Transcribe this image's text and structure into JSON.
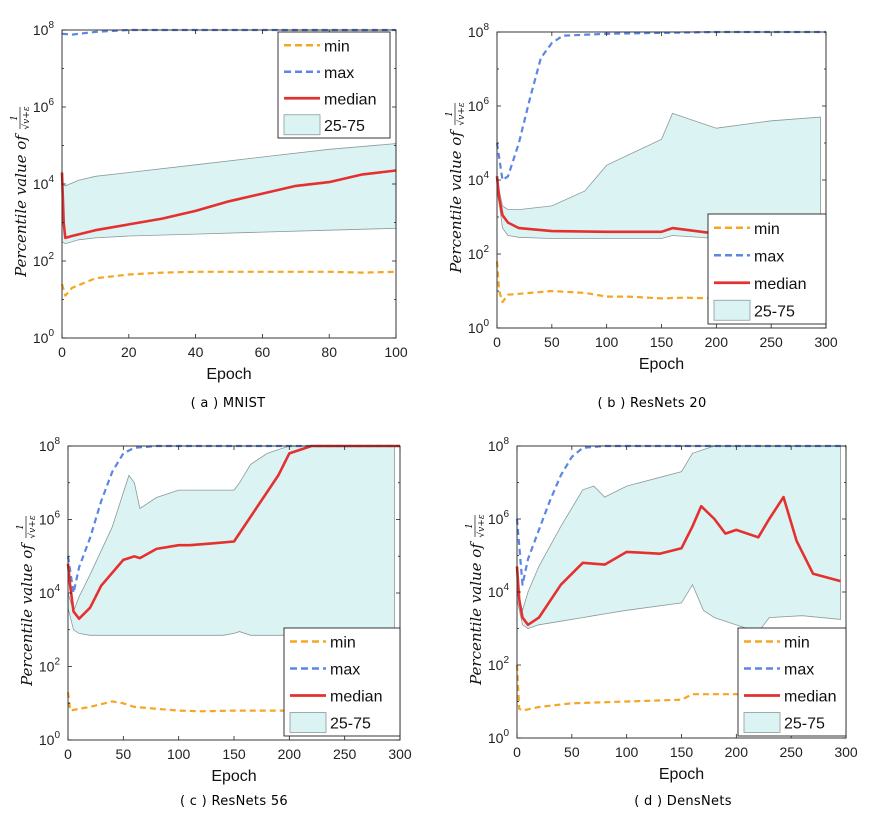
{
  "chart_data": [
    {
      "id": "a",
      "type": "line",
      "caption": "( a ) MNIST",
      "xlabel": "Epoch",
      "ylabel": "Percentile value of",
      "ylabel_frac_num": "1",
      "ylabel_frac_den": "√v+ε",
      "xlim": [
        0,
        100
      ],
      "ylim_log10": [
        0,
        8
      ],
      "xticks": [
        0,
        20,
        40,
        60,
        80,
        100
      ],
      "yticks_exp": [
        0,
        2,
        4,
        6,
        8
      ],
      "legend": {
        "position": "top-right",
        "entries": [
          "min",
          "max",
          "median",
          "25-75"
        ]
      },
      "series": [
        {
          "name": "min",
          "color": "#f5a623",
          "style": "dashed",
          "x": [
            0,
            1,
            3,
            10,
            20,
            30,
            40,
            50,
            60,
            70,
            80,
            90,
            100
          ],
          "log10y": [
            1.4,
            1.1,
            1.3,
            1.55,
            1.65,
            1.7,
            1.72,
            1.72,
            1.72,
            1.72,
            1.72,
            1.7,
            1.72
          ]
        },
        {
          "name": "max",
          "color": "#5b86e5",
          "style": "dashed",
          "x": [
            0,
            3,
            10,
            20,
            40,
            60,
            80,
            100
          ],
          "log10y": [
            7.9,
            7.88,
            7.95,
            8.0,
            8.0,
            8.0,
            8.0,
            8.0
          ]
        },
        {
          "name": "median",
          "color": "#e53030",
          "style": "solid",
          "x": [
            0,
            0.5,
            1,
            3,
            10,
            20,
            30,
            40,
            50,
            60,
            70,
            80,
            90,
            100
          ],
          "log10y": [
            4.3,
            3.0,
            2.6,
            2.65,
            2.8,
            2.95,
            3.1,
            3.3,
            3.55,
            3.75,
            3.95,
            4.05,
            4.25,
            4.35
          ]
        },
        {
          "name": "25-75",
          "color": "#dcf3f3",
          "style": "band",
          "x": [
            0,
            1,
            5,
            10,
            20,
            40,
            60,
            80,
            100
          ],
          "low_log10": [
            2.5,
            2.45,
            2.55,
            2.6,
            2.65,
            2.7,
            2.75,
            2.8,
            2.85
          ],
          "high_log10": [
            4.0,
            3.95,
            4.1,
            4.2,
            4.3,
            4.5,
            4.7,
            4.9,
            5.05
          ]
        }
      ]
    },
    {
      "id": "b",
      "type": "line",
      "caption": "( b ) ResNets 20",
      "xlabel": "Epoch",
      "ylabel": "Percentile value of",
      "ylabel_frac_num": "1",
      "ylabel_frac_den": "√v+ε",
      "xlim": [
        0,
        300
      ],
      "ylim_log10": [
        0,
        8
      ],
      "xticks": [
        0,
        50,
        100,
        150,
        200,
        250,
        300
      ],
      "yticks_exp": [
        0,
        2,
        4,
        6,
        8
      ],
      "legend": {
        "position": "bottom-right",
        "entries": [
          "min",
          "max",
          "median",
          "25-75"
        ]
      },
      "series": [
        {
          "name": "min",
          "color": "#f5a623",
          "style": "dashed",
          "x": [
            0,
            2,
            5,
            10,
            30,
            50,
            80,
            100,
            120,
            150,
            170,
            200
          ],
          "log10y": [
            1.8,
            1.0,
            0.7,
            0.9,
            0.95,
            1.0,
            0.95,
            0.85,
            0.85,
            0.8,
            0.82,
            0.8
          ]
        },
        {
          "name": "max",
          "color": "#5b86e5",
          "style": "dashed",
          "x": [
            0,
            5,
            10,
            20,
            30,
            40,
            50,
            60,
            100,
            200,
            300
          ],
          "log10y": [
            5.0,
            4.0,
            4.1,
            5.0,
            6.2,
            7.3,
            7.7,
            7.9,
            7.95,
            8.0,
            8.0
          ]
        },
        {
          "name": "median",
          "color": "#e53030",
          "style": "solid",
          "x": [
            0,
            2,
            5,
            10,
            20,
            50,
            100,
            150,
            160,
            200,
            215
          ],
          "log10y": [
            4.1,
            3.5,
            3.05,
            2.85,
            2.7,
            2.62,
            2.6,
            2.6,
            2.7,
            2.55,
            2.5
          ]
        },
        {
          "name": "25-75",
          "color": "#dcf3f3",
          "style": "band",
          "x": [
            0,
            5,
            10,
            20,
            50,
            80,
            100,
            150,
            160,
            200,
            250,
            295
          ],
          "low_log10": [
            3.8,
            2.7,
            2.5,
            2.45,
            2.42,
            2.42,
            2.42,
            2.42,
            2.5,
            2.42,
            2.42,
            2.42
          ],
          "high_log10": [
            4.0,
            3.3,
            3.2,
            3.2,
            3.3,
            3.7,
            4.4,
            5.1,
            5.8,
            5.4,
            5.6,
            5.7
          ]
        }
      ]
    },
    {
      "id": "c",
      "type": "line",
      "caption": "( c ) ResNets 56",
      "xlabel": "Epoch",
      "ylabel": "Percentile value of",
      "ylabel_frac_num": "1",
      "ylabel_frac_den": "√v+ε",
      "xlim": [
        0,
        300
      ],
      "ylim_log10": [
        0,
        8
      ],
      "xticks": [
        0,
        50,
        100,
        150,
        200,
        250,
        300
      ],
      "yticks_exp": [
        0,
        2,
        4,
        6,
        8
      ],
      "legend": {
        "position": "bottom-right",
        "entries": [
          "min",
          "max",
          "median",
          "25-75"
        ]
      },
      "series": [
        {
          "name": "min",
          "color": "#f5a623",
          "style": "dashed",
          "x": [
            0,
            2,
            10,
            20,
            40,
            50,
            60,
            80,
            100,
            120,
            150,
            200
          ],
          "log10y": [
            1.3,
            0.8,
            0.85,
            0.9,
            1.05,
            1.0,
            0.9,
            0.85,
            0.8,
            0.78,
            0.8,
            0.8
          ]
        },
        {
          "name": "max",
          "color": "#5b86e5",
          "style": "dashed",
          "x": [
            0,
            5,
            10,
            20,
            30,
            40,
            50,
            60,
            80,
            100,
            150,
            200,
            300
          ],
          "log10y": [
            5.0,
            4.0,
            4.7,
            5.5,
            6.5,
            7.3,
            7.8,
            7.95,
            8.0,
            8.0,
            8.0,
            8.0,
            8.0
          ]
        },
        {
          "name": "median",
          "color": "#e53030",
          "style": "solid",
          "x": [
            0,
            2,
            5,
            10,
            20,
            30,
            50,
            60,
            65,
            80,
            100,
            110,
            130,
            150,
            170,
            190,
            200,
            220,
            300
          ],
          "log10y": [
            4.8,
            4.2,
            3.5,
            3.3,
            3.6,
            4.2,
            4.9,
            5.0,
            4.95,
            5.2,
            5.3,
            5.3,
            5.35,
            5.4,
            6.3,
            7.2,
            7.8,
            8.0,
            8.0
          ]
        },
        {
          "name": "25-75",
          "color": "#dcf3f3",
          "style": "band",
          "x": [
            0,
            5,
            10,
            20,
            40,
            55,
            60,
            65,
            80,
            100,
            120,
            140,
            150,
            155,
            165,
            180,
            200,
            295
          ],
          "low_log10": [
            3.6,
            3.0,
            2.9,
            2.85,
            2.85,
            2.85,
            2.85,
            2.85,
            2.85,
            2.85,
            2.85,
            2.85,
            2.9,
            2.95,
            2.85,
            2.85,
            2.85,
            2.85
          ],
          "high_log10": [
            4.0,
            3.5,
            3.9,
            4.5,
            5.8,
            7.2,
            7.0,
            6.3,
            6.6,
            6.8,
            6.8,
            6.8,
            6.8,
            7.0,
            7.5,
            7.8,
            8.0,
            8.0
          ]
        }
      ]
    },
    {
      "id": "d",
      "type": "line",
      "caption": "( d ) DensNets",
      "xlabel": "Epoch",
      "ylabel": "Percentile value of",
      "ylabel_frac_num": "1",
      "ylabel_frac_den": "√v+ε",
      "xlim": [
        0,
        300
      ],
      "ylim_log10": [
        0,
        8
      ],
      "xticks": [
        0,
        50,
        100,
        150,
        200,
        250,
        300
      ],
      "yticks_exp": [
        0,
        2,
        4,
        6,
        8
      ],
      "legend": {
        "position": "bottom-right",
        "entries": [
          "min",
          "max",
          "median",
          "25-75"
        ]
      },
      "series": [
        {
          "name": "min",
          "color": "#f5a623",
          "style": "dashed",
          "x": [
            0,
            2,
            5,
            20,
            50,
            100,
            150,
            160,
            200,
            220
          ],
          "log10y": [
            2.0,
            0.8,
            0.75,
            0.85,
            0.95,
            1.0,
            1.05,
            1.2,
            1.2,
            1.15
          ]
        },
        {
          "name": "max",
          "color": "#5b86e5",
          "style": "dashed",
          "x": [
            0,
            5,
            10,
            20,
            30,
            40,
            50,
            60,
            80,
            100,
            200,
            300
          ],
          "log10y": [
            6.0,
            4.2,
            4.9,
            5.7,
            6.5,
            7.2,
            7.7,
            7.95,
            8.0,
            8.0,
            8.0,
            8.0
          ]
        },
        {
          "name": "median",
          "color": "#e53030",
          "style": "solid",
          "x": [
            0,
            2,
            5,
            10,
            20,
            40,
            60,
            80,
            100,
            130,
            150,
            160,
            168,
            180,
            190,
            200,
            220,
            230,
            243,
            255,
            270,
            295
          ],
          "log10y": [
            4.7,
            3.8,
            3.3,
            3.1,
            3.3,
            4.2,
            4.8,
            4.75,
            5.1,
            5.05,
            5.2,
            5.8,
            6.35,
            6.0,
            5.6,
            5.7,
            5.5,
            6.0,
            6.6,
            5.4,
            4.5,
            4.3
          ]
        },
        {
          "name": "25-75",
          "color": "#dcf3f3",
          "style": "band",
          "x": [
            0,
            5,
            10,
            20,
            40,
            60,
            70,
            80,
            100,
            150,
            160,
            170,
            180,
            220,
            230,
            260,
            295
          ],
          "low_log10": [
            3.8,
            3.1,
            3.0,
            3.1,
            3.2,
            3.3,
            3.35,
            3.4,
            3.5,
            3.7,
            4.2,
            3.5,
            3.3,
            2.9,
            3.3,
            3.35,
            3.25
          ],
          "high_log10": [
            4.0,
            3.5,
            4.0,
            4.7,
            5.8,
            6.8,
            6.9,
            6.6,
            6.9,
            7.3,
            7.8,
            7.9,
            8.0,
            8.0,
            8.0,
            8.0,
            8.0
          ]
        }
      ]
    }
  ]
}
